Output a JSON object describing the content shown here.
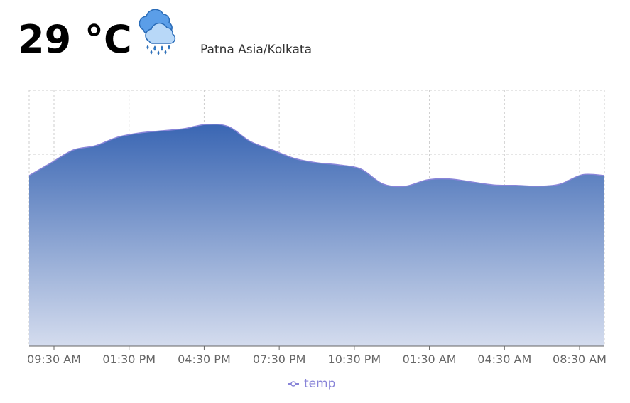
{
  "header": {
    "temperature": "29 °C",
    "location": "Patna Asia/Kolkata",
    "weather_icon": "rain-cloud-icon"
  },
  "colors": {
    "stroke": "#8884d8",
    "fill_top": "#3a66b3",
    "fill_bottom": "#d4dcee",
    "grid": "#cccccc",
    "axis": "#666666"
  },
  "chart_data": {
    "type": "area",
    "x_ticks": [
      "09:30 AM",
      "01:30 PM",
      "04:30 PM",
      "07:30 PM",
      "10:30 PM",
      "01:30 AM",
      "04:30 AM",
      "08:30 AM"
    ],
    "series": [
      {
        "name": "temp",
        "values": [
          29.0,
          29.3,
          29.6,
          29.7,
          29.9,
          30.0,
          30.05,
          30.1,
          30.2,
          30.15,
          29.8,
          29.6,
          29.4,
          29.3,
          29.25,
          29.15,
          28.8,
          28.75,
          28.9,
          28.92,
          28.85,
          28.78,
          28.77,
          28.75,
          28.8,
          29.02,
          29.0
        ]
      }
    ],
    "ylim": [
      25,
      31
    ],
    "grid": true,
    "legend": "bottom-center"
  }
}
